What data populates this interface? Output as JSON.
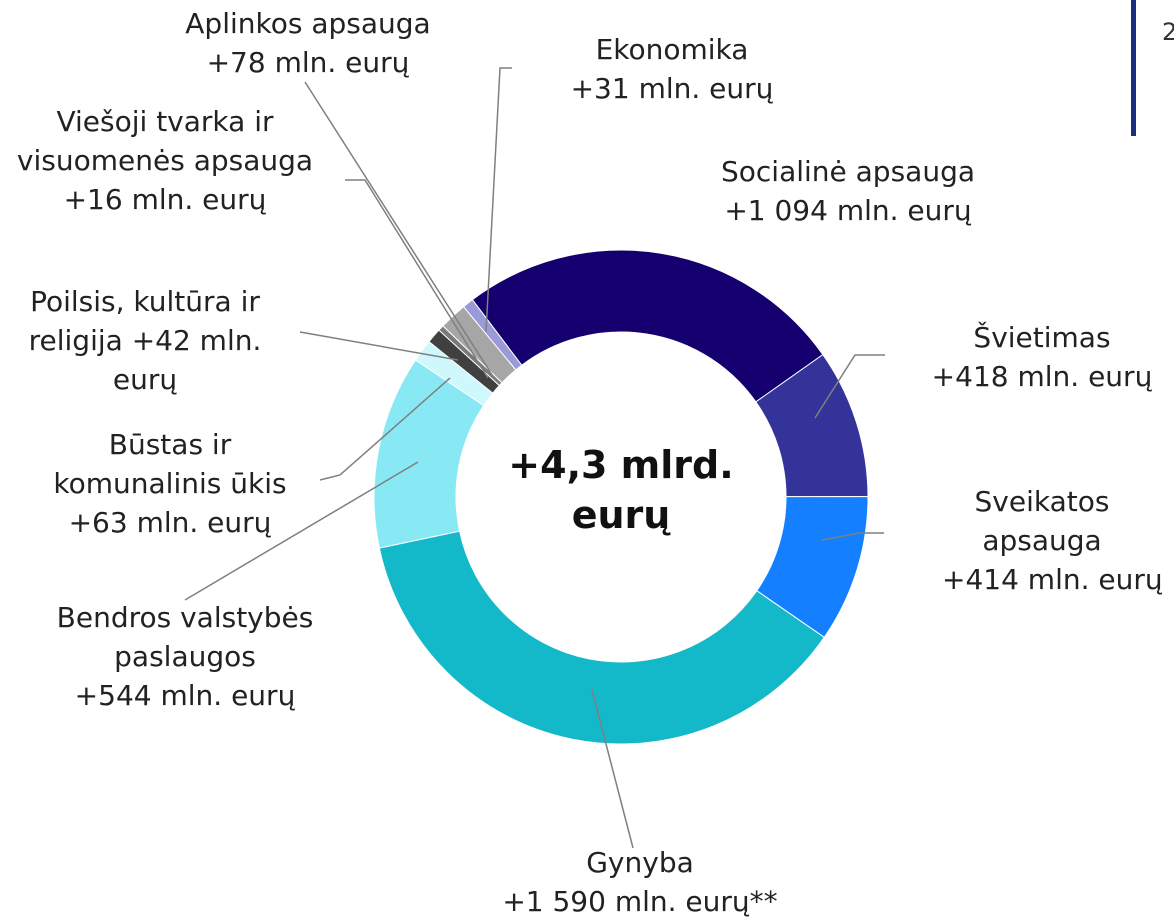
{
  "chart_data": {
    "type": "donut",
    "categories": [
      "Socialinė apsauga",
      "Švietimas",
      "Sveikatos apsauga",
      "Gynyba",
      "Bendros valstybės paslaugos",
      "Būstas ir komunalinis ūkis",
      "Poilsis, kultūra ir religija",
      "Viešoji tvarka ir visuomenės apsauga",
      "Aplinkos apsauga",
      "Ekonomika"
    ],
    "values": [
      1094,
      418,
      414,
      1590,
      544,
      63,
      42,
      16,
      78,
      31
    ],
    "value_labels": [
      "+1 094 mln. eurų",
      "+418 mln. eurų",
      "+414 mln. eurų",
      "+1 590 mln. eurų**",
      "+544 mln. eurų",
      "+63 mln. eurų",
      "+42 mln. eurų",
      "+16 mln. eurų",
      "+78 mln. eurų",
      "+31 mln. eurų"
    ],
    "colors": [
      "#150070",
      "#333399",
      "#1480ff",
      "#14b9c9",
      "#88e9f5",
      "#cff8fc",
      "#404040",
      "#7a7a7a",
      "#a6a6a6",
      "#9a9ad8"
    ],
    "center_label": "+4,3 mlrd. eurų"
  },
  "corner_text": "2"
}
